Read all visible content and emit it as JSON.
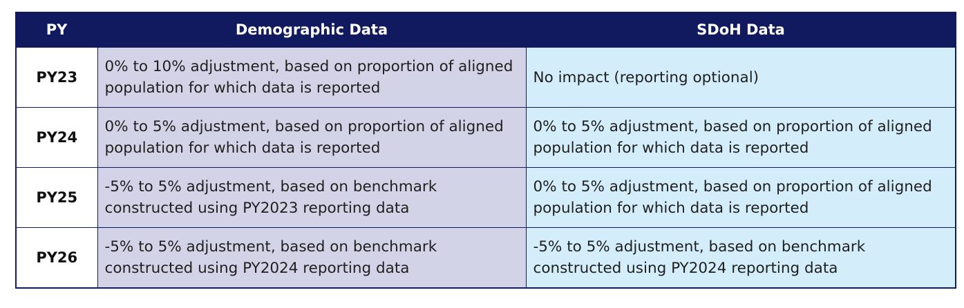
{
  "table": {
    "headers": [
      "PY",
      "Demographic Data",
      "SDoH Data"
    ],
    "rows": [
      {
        "py": "PY23",
        "demographic": "0% to 10% adjustment, based on proportion of aligned population for which data is reported",
        "sdoh": "No impact (reporting optional)"
      },
      {
        "py": "PY24",
        "demographic": "0% to 5% adjustment, based on proportion of aligned population for which data is reported",
        "sdoh": "0% to 5% adjustment, based on proportion of aligned population for which data is reported"
      },
      {
        "py": "PY25",
        "demographic": "-5% to 5% adjustment, based on benchmark constructed using PY2023 reporting data",
        "sdoh": "0% to 5% adjustment, based on proportion of aligned population for which data is reported"
      },
      {
        "py": "PY26",
        "demographic": "-5% to 5% adjustment, based on benchmark constructed using PY2024 reporting data",
        "sdoh": "-5% to 5% adjustment, based on benchmark constructed using PY2024 reporting data"
      }
    ]
  },
  "colors": {
    "header_bg": "#111a5e",
    "demographic_bg": "#d3d3e8",
    "sdoh_bg": "#d3eefa"
  }
}
